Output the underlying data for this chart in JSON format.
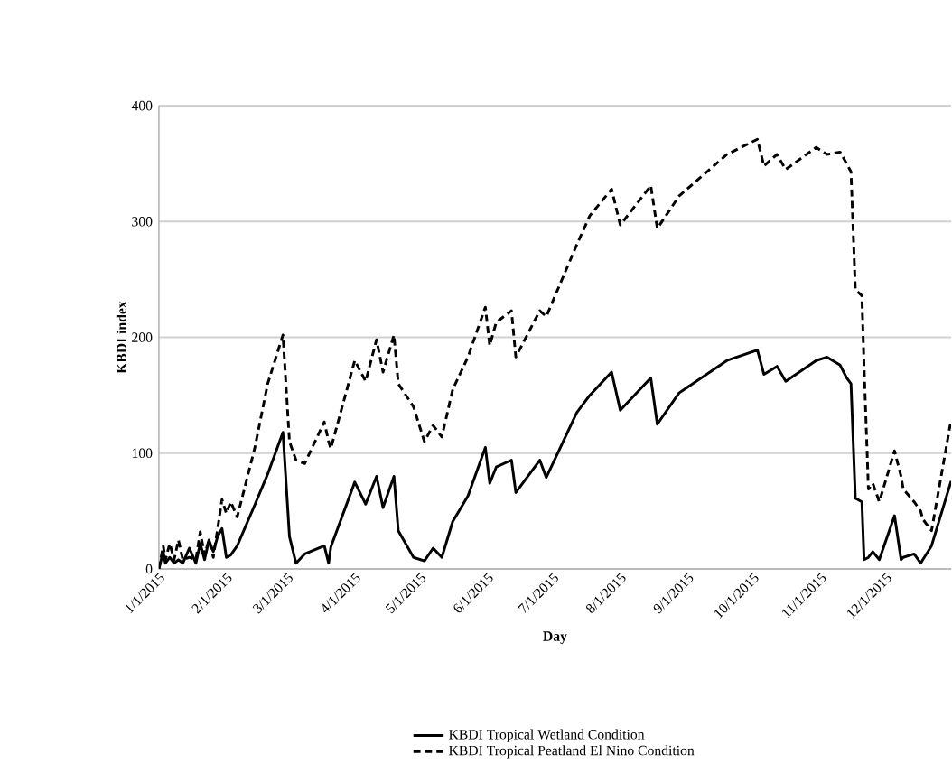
{
  "chart_data": {
    "type": "line",
    "xlabel": "Day",
    "ylabel": "KBDI index",
    "x": [
      "2015-01-01",
      "2015-01-03",
      "2015-01-04",
      "2015-01-06",
      "2015-01-08",
      "2015-01-10",
      "2015-01-12",
      "2015-01-15",
      "2015-01-18",
      "2015-01-20",
      "2015-01-22",
      "2015-01-24",
      "2015-01-26",
      "2015-01-28",
      "2015-01-30",
      "2015-02-01",
      "2015-02-03",
      "2015-02-06",
      "2015-02-14",
      "2015-02-20",
      "2015-02-27",
      "2015-03-02",
      "2015-03-05",
      "2015-03-09",
      "2015-03-18",
      "2015-03-20",
      "2015-03-21",
      "2015-04-01",
      "2015-04-06",
      "2015-04-11",
      "2015-04-14",
      "2015-04-19",
      "2015-04-21",
      "2015-04-28",
      "2015-05-03",
      "2015-05-07",
      "2015-05-11",
      "2015-05-16",
      "2015-05-23",
      "2015-05-31",
      "2015-06-02",
      "2015-06-05",
      "2015-06-12",
      "2015-06-14",
      "2015-06-25",
      "2015-06-28",
      "2015-07-12",
      "2015-07-18",
      "2015-07-28",
      "2015-08-01",
      "2015-08-15",
      "2015-08-18",
      "2015-08-28",
      "2015-09-19",
      "2015-10-03",
      "2015-10-06",
      "2015-10-12",
      "2015-10-16",
      "2015-10-30",
      "2015-11-04",
      "2015-11-10",
      "2015-11-13",
      "2015-11-15",
      "2015-11-17",
      "2015-11-20",
      "2015-11-21",
      "2015-11-23",
      "2015-11-25",
      "2015-11-28",
      "2015-12-05",
      "2015-12-08",
      "2015-12-09",
      "2015-12-14",
      "2015-12-17",
      "2015-12-18",
      "2015-12-22",
      "2015-12-31"
    ],
    "series": [
      {
        "name": "KBDI Tropical Wetland Condition",
        "color": "#000000",
        "line_style": "solid",
        "values": [
          0,
          15,
          5,
          10,
          5,
          8,
          5,
          18,
          5,
          22,
          8,
          25,
          15,
          28,
          35,
          10,
          12,
          20,
          55,
          82,
          118,
          28,
          5,
          13,
          20,
          5,
          19,
          75,
          56,
          80,
          53,
          80,
          33,
          10,
          7,
          18,
          10,
          41,
          63,
          105,
          74,
          88,
          94,
          66,
          94,
          79,
          135,
          150,
          170,
          137,
          165,
          125,
          152,
          180,
          189,
          168,
          175,
          162,
          180,
          183,
          176,
          165,
          160,
          61,
          58,
          8,
          10,
          15,
          8,
          46,
          8,
          10,
          13,
          5,
          8,
          20,
          76
        ]
      },
      {
        "name": "KBDI Tropical Peatland El Nino Condition",
        "color": "#000000",
        "line_style": "dashed",
        "values": [
          0,
          20,
          8,
          22,
          8,
          25,
          8,
          10,
          8,
          32,
          12,
          25,
          10,
          35,
          60,
          48,
          58,
          45,
          104,
          160,
          202,
          110,
          94,
          91,
          127,
          110,
          104,
          180,
          162,
          198,
          170,
          202,
          160,
          140,
          110,
          124,
          114,
          155,
          183,
          226,
          193,
          213,
          223,
          183,
          223,
          218,
          280,
          305,
          328,
          297,
          331,
          294,
          322,
          358,
          371,
          348,
          358,
          345,
          364,
          358,
          360,
          350,
          343,
          241,
          236,
          175,
          69,
          74,
          58,
          102,
          80,
          69,
          58,
          50,
          43,
          33,
          129
        ]
      }
    ],
    "xlim": [
      "2015-01-01",
      "2015-12-31"
    ],
    "xticks": [
      {
        "value": "2015-01-01",
        "label": "1/1/2015"
      },
      {
        "value": "2015-02-01",
        "label": "2/1/2015"
      },
      {
        "value": "2015-03-01",
        "label": "3/1/2015"
      },
      {
        "value": "2015-04-01",
        "label": "4/1/2015"
      },
      {
        "value": "2015-05-01",
        "label": "5/1/2015"
      },
      {
        "value": "2015-06-01",
        "label": "6/1/2015"
      },
      {
        "value": "2015-07-01",
        "label": "7/1/2015"
      },
      {
        "value": "2015-08-01",
        "label": "8/1/2015"
      },
      {
        "value": "2015-09-01",
        "label": "9/1/2015"
      },
      {
        "value": "2015-10-01",
        "label": "10/1/2015"
      },
      {
        "value": "2015-11-01",
        "label": "11/1/2015"
      },
      {
        "value": "2015-12-01",
        "label": "12/1/2015"
      }
    ],
    "ylim": [
      0,
      400
    ],
    "yticks": [
      0,
      100,
      200,
      300,
      400
    ],
    "grid": "y",
    "legend": "bottom"
  }
}
